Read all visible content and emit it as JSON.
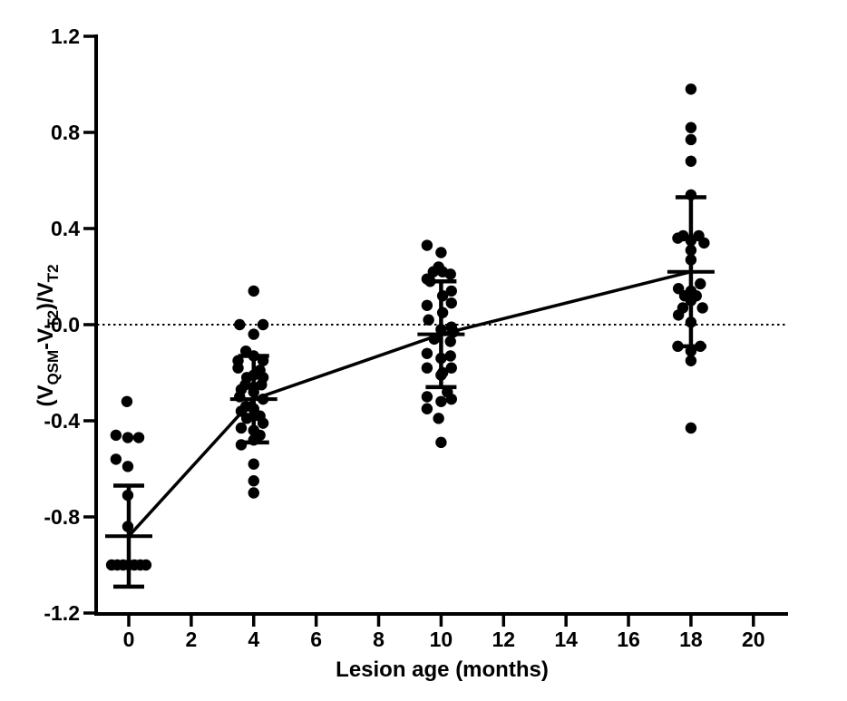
{
  "figure": {
    "background": "#ffffff",
    "ink_color": "#000000"
  },
  "chart_data": {
    "type": "scatter",
    "title": "",
    "xlabel": "Lesion age (months)",
    "ylabel": "(V_QSM-V_T2)/V_T2",
    "ylabel_parts": [
      {
        "text": "(V",
        "sub": false
      },
      {
        "text": "QSM",
        "sub": true
      },
      {
        "text": "-V",
        "sub": false
      },
      {
        "text": "T2",
        "sub": true
      },
      {
        "text": ")/V",
        "sub": false
      },
      {
        "text": "T2",
        "sub": true
      }
    ],
    "xlim": [
      -1.05,
      21.1
    ],
    "ylim": [
      -1.2,
      1.2
    ],
    "xticks": [
      0,
      2,
      4,
      6,
      8,
      10,
      12,
      14,
      16,
      18,
      20
    ],
    "yticks": [
      {
        "value": 1.2,
        "label": "1.2"
      },
      {
        "value": 0.8,
        "label": "0.8"
      },
      {
        "value": 0.4,
        "label": "0.4"
      },
      {
        "value": 0.0,
        "label": "-0.0"
      },
      {
        "value": -0.4,
        "label": "-0.4"
      },
      {
        "value": -0.8,
        "label": "-0.8"
      },
      {
        "value": -1.2,
        "label": "-1.2"
      }
    ],
    "grid": false,
    "legend": null,
    "reference_line_y": 0,
    "marker_color": "#000000",
    "trend_line_points": [
      [
        0,
        -0.88
      ],
      [
        4,
        -0.31
      ],
      [
        10,
        -0.04
      ],
      [
        18,
        0.22
      ]
    ],
    "groups": [
      {
        "x": 0,
        "mean": -0.88,
        "err_high": -0.67,
        "err_low": -1.09,
        "points": [
          [
            -0.06,
            -0.32
          ],
          [
            -0.41,
            -0.46
          ],
          [
            -0.03,
            -0.47
          ],
          [
            0.32,
            -0.47
          ],
          [
            -0.41,
            -0.56
          ],
          [
            -0.03,
            -0.59
          ],
          [
            -0.03,
            -0.71
          ],
          [
            -0.03,
            -0.84
          ],
          [
            -0.55,
            -1.0
          ],
          [
            -0.37,
            -1.0
          ],
          [
            -0.18,
            -1.0
          ],
          [
            0.0,
            -1.0
          ],
          [
            0.18,
            -1.0
          ],
          [
            0.37,
            -1.0
          ],
          [
            0.55,
            -1.0
          ]
        ]
      },
      {
        "x": 4,
        "mean": -0.31,
        "err_high": -0.13,
        "err_low": -0.49,
        "points": [
          [
            0.0,
            0.14
          ],
          [
            -0.45,
            0.0
          ],
          [
            0.3,
            0.0
          ],
          [
            0.0,
            -0.04
          ],
          [
            -0.25,
            -0.11
          ],
          [
            0.0,
            -0.13
          ],
          [
            -0.5,
            -0.15
          ],
          [
            0.3,
            -0.15
          ],
          [
            -0.5,
            -0.18
          ],
          [
            0.2,
            -0.19
          ],
          [
            0.0,
            -0.21
          ],
          [
            -0.22,
            -0.22
          ],
          [
            0.3,
            -0.22
          ],
          [
            -0.27,
            -0.25
          ],
          [
            0.0,
            -0.26
          ],
          [
            0.25,
            -0.25
          ],
          [
            -0.4,
            -0.27
          ],
          [
            0.0,
            -0.28
          ],
          [
            -0.45,
            -0.3
          ],
          [
            0.3,
            -0.31
          ],
          [
            -0.25,
            -0.34
          ],
          [
            0.0,
            -0.35
          ],
          [
            -0.4,
            -0.36
          ],
          [
            0.0,
            -0.38
          ],
          [
            -0.22,
            -0.39
          ],
          [
            0.2,
            -0.38
          ],
          [
            0.3,
            -0.41
          ],
          [
            -0.4,
            -0.43
          ],
          [
            0.0,
            -0.44
          ],
          [
            0.2,
            -0.46
          ],
          [
            0.0,
            -0.48
          ],
          [
            -0.4,
            -0.5
          ],
          [
            0.0,
            -0.58
          ],
          [
            0.0,
            -0.65
          ],
          [
            0.0,
            -0.7
          ]
        ]
      },
      {
        "x": 10,
        "mean": -0.04,
        "err_high": 0.18,
        "err_low": -0.26,
        "points": [
          [
            -0.45,
            0.33
          ],
          [
            0.0,
            0.3
          ],
          [
            -0.08,
            0.24
          ],
          [
            -0.25,
            0.22
          ],
          [
            0.05,
            0.22
          ],
          [
            0.3,
            0.21
          ],
          [
            -0.45,
            0.19
          ],
          [
            -0.35,
            0.18
          ],
          [
            0.33,
            0.14
          ],
          [
            0.05,
            0.12
          ],
          [
            0.33,
            0.09
          ],
          [
            -0.45,
            0.08
          ],
          [
            0.05,
            0.05
          ],
          [
            -0.4,
            0.02
          ],
          [
            0.33,
            -0.01
          ],
          [
            0.0,
            -0.02
          ],
          [
            0.4,
            -0.03
          ],
          [
            -0.22,
            -0.06
          ],
          [
            0.3,
            -0.07
          ],
          [
            -0.45,
            -0.12
          ],
          [
            0.3,
            -0.13
          ],
          [
            0.0,
            -0.14
          ],
          [
            -0.45,
            -0.18
          ],
          [
            0.33,
            -0.18
          ],
          [
            0.05,
            -0.2
          ],
          [
            0.0,
            -0.21
          ],
          [
            0.2,
            -0.28
          ],
          [
            -0.45,
            -0.3
          ],
          [
            0.33,
            -0.31
          ],
          [
            0.0,
            -0.32
          ],
          [
            -0.45,
            -0.35
          ],
          [
            -0.08,
            -0.39
          ],
          [
            0.0,
            -0.49
          ]
        ]
      },
      {
        "x": 18,
        "mean": 0.22,
        "err_high": 0.53,
        "err_low": -0.09,
        "points": [
          [
            0.0,
            0.98
          ],
          [
            0.0,
            0.82
          ],
          [
            0.0,
            0.77
          ],
          [
            0.0,
            0.68
          ],
          [
            0.0,
            0.54
          ],
          [
            -0.42,
            0.36
          ],
          [
            -0.25,
            0.37
          ],
          [
            0.0,
            0.35
          ],
          [
            0.25,
            0.37
          ],
          [
            0.42,
            0.34
          ],
          [
            0.0,
            0.31
          ],
          [
            0.0,
            0.27
          ],
          [
            0.3,
            0.17
          ],
          [
            -0.4,
            0.15
          ],
          [
            0.0,
            0.14
          ],
          [
            -0.2,
            0.12
          ],
          [
            0.17,
            0.12
          ],
          [
            0.0,
            0.1
          ],
          [
            -0.26,
            0.07
          ],
          [
            0.37,
            0.07
          ],
          [
            -0.4,
            0.04
          ],
          [
            0.0,
            0.01
          ],
          [
            -0.42,
            -0.09
          ],
          [
            0.3,
            -0.09
          ],
          [
            0.0,
            -0.11
          ],
          [
            0.0,
            -0.15
          ],
          [
            0.0,
            -0.43
          ]
        ]
      }
    ]
  }
}
